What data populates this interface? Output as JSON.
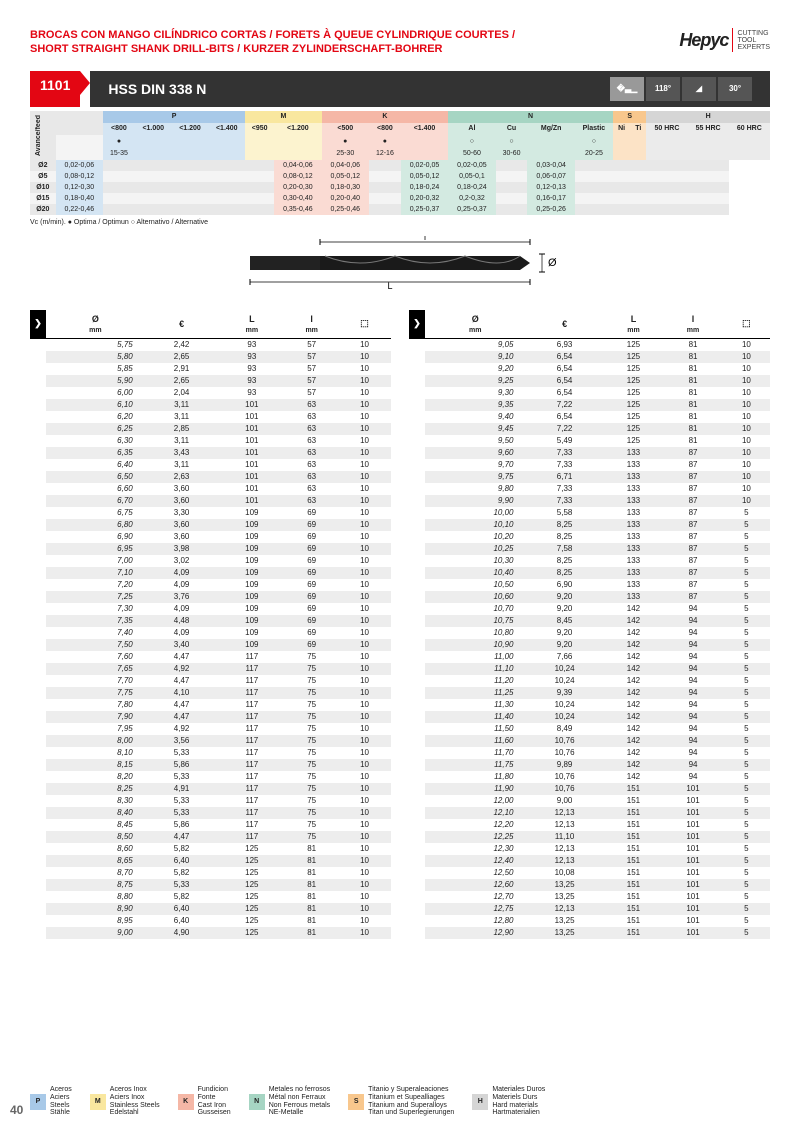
{
  "header": {
    "title_line1": "BROCAS CON MANGO CILÍNDRICO CORTAS / FORETS À QUEUE CYLINDRIQUE COURTES /",
    "title_line2": "SHORT STRAIGHT SHANK DRILL-BITS / KURZER ZYLINDERSCHAFT-BOHRER",
    "logo_name": "Hepyc",
    "logo_sub": "CUTTING\nTOOL\nEXPERTS"
  },
  "product": {
    "code": "1101",
    "name": "HSS DIN 338 N",
    "angle1": "118°",
    "angle2": "30°"
  },
  "materials": {
    "groups": [
      "P",
      "M",
      "K",
      "N",
      "S",
      "H"
    ],
    "P_sub": [
      "<800",
      "<1.000",
      "<1.200",
      "<1.400"
    ],
    "M_sub": [
      "<950",
      "<1.200"
    ],
    "K_sub": [
      "<500",
      "<800",
      "<1.400"
    ],
    "N_sub": [
      "Al",
      "Cu",
      "Mg/Zn",
      "Plastic"
    ],
    "S_sub": [
      "Ni",
      "Ti"
    ],
    "H_sub": [
      "50 HRC",
      "55 HRC",
      "60 HRC"
    ],
    "vc_row": [
      "●",
      "",
      "",
      "",
      "",
      "",
      "●",
      "●",
      "",
      "○",
      "○",
      "",
      "○",
      "",
      "",
      "",
      "",
      ""
    ],
    "vc_vals": [
      "15-35",
      "",
      "",
      "",
      "",
      "",
      "25-30",
      "12-16",
      "",
      "50-60",
      "30-60",
      "",
      "20-25",
      "",
      "",
      "",
      "",
      ""
    ],
    "feed_rows": [
      {
        "d": "Ø2",
        "v": [
          "0,02-0,06",
          "",
          "",
          "",
          "",
          "",
          "0,04-0,06",
          "0,04-0,06",
          "",
          "0,02-0,05",
          "0,02-0,05",
          "",
          "0,03-0,04",
          "",
          "",
          "",
          "",
          ""
        ]
      },
      {
        "d": "Ø5",
        "v": [
          "0,08-0,12",
          "",
          "",
          "",
          "",
          "",
          "0,08-0,12",
          "0,05-0,12",
          "",
          "0,05-0,12",
          "0,05-0,1",
          "",
          "0,06-0,07",
          "",
          "",
          "",
          "",
          ""
        ]
      },
      {
        "d": "Ø10",
        "v": [
          "0,12-0,30",
          "",
          "",
          "",
          "",
          "",
          "0,20-0,30",
          "0,18-0,30",
          "",
          "0,18-0,24",
          "0,18-0,24",
          "",
          "0,12-0,13",
          "",
          "",
          "",
          "",
          ""
        ]
      },
      {
        "d": "Ø15",
        "v": [
          "0,18-0,40",
          "",
          "",
          "",
          "",
          "",
          "0,30-0,40",
          "0,20-0,40",
          "",
          "0,20-0,32",
          "0,2-0,32",
          "",
          "0,16-0,17",
          "",
          "",
          "",
          "",
          ""
        ]
      },
      {
        "d": "Ø20",
        "v": [
          "0,22-0,46",
          "",
          "",
          "",
          "",
          "",
          "0,35-0,46",
          "0,25-0,46",
          "",
          "0,25-0,37",
          "0,25-0,37",
          "",
          "0,25-0,26",
          "",
          "",
          "",
          "",
          ""
        ]
      }
    ],
    "note": "Vc (m/min). ● Optima / Optimun  ○ Alternativo / Alternative",
    "side_label": "Avance/feed"
  },
  "columns": [
    "Ø\nmm",
    "€",
    "L\nmm",
    "l\nmm",
    "📦"
  ],
  "table_left": [
    [
      "5,75",
      "2,42",
      "93",
      "57",
      "10"
    ],
    [
      "5,80",
      "2,65",
      "93",
      "57",
      "10"
    ],
    [
      "5,85",
      "2,91",
      "93",
      "57",
      "10"
    ],
    [
      "5,90",
      "2,65",
      "93",
      "57",
      "10"
    ],
    [
      "6,00",
      "2,04",
      "93",
      "57",
      "10"
    ],
    [
      "6,10",
      "3,11",
      "101",
      "63",
      "10"
    ],
    [
      "6,20",
      "3,11",
      "101",
      "63",
      "10"
    ],
    [
      "6,25",
      "2,85",
      "101",
      "63",
      "10"
    ],
    [
      "6,30",
      "3,11",
      "101",
      "63",
      "10"
    ],
    [
      "6,35",
      "3,43",
      "101",
      "63",
      "10"
    ],
    [
      "6,40",
      "3,11",
      "101",
      "63",
      "10"
    ],
    [
      "6,50",
      "2,63",
      "101",
      "63",
      "10"
    ],
    [
      "6,60",
      "3,60",
      "101",
      "63",
      "10"
    ],
    [
      "6,70",
      "3,60",
      "101",
      "63",
      "10"
    ],
    [
      "6,75",
      "3,30",
      "109",
      "69",
      "10"
    ],
    [
      "6,80",
      "3,60",
      "109",
      "69",
      "10"
    ],
    [
      "6,90",
      "3,60",
      "109",
      "69",
      "10"
    ],
    [
      "6,95",
      "3,98",
      "109",
      "69",
      "10"
    ],
    [
      "7,00",
      "3,02",
      "109",
      "69",
      "10"
    ],
    [
      "7,10",
      "4,09",
      "109",
      "69",
      "10"
    ],
    [
      "7,20",
      "4,09",
      "109",
      "69",
      "10"
    ],
    [
      "7,25",
      "3,76",
      "109",
      "69",
      "10"
    ],
    [
      "7,30",
      "4,09",
      "109",
      "69",
      "10"
    ],
    [
      "7,35",
      "4,48",
      "109",
      "69",
      "10"
    ],
    [
      "7,40",
      "4,09",
      "109",
      "69",
      "10"
    ],
    [
      "7,50",
      "3,40",
      "109",
      "69",
      "10"
    ],
    [
      "7,60",
      "4,47",
      "117",
      "75",
      "10"
    ],
    [
      "7,65",
      "4,92",
      "117",
      "75",
      "10"
    ],
    [
      "7,70",
      "4,47",
      "117",
      "75",
      "10"
    ],
    [
      "7,75",
      "4,10",
      "117",
      "75",
      "10"
    ],
    [
      "7,80",
      "4,47",
      "117",
      "75",
      "10"
    ],
    [
      "7,90",
      "4,47",
      "117",
      "75",
      "10"
    ],
    [
      "7,95",
      "4,92",
      "117",
      "75",
      "10"
    ],
    [
      "8,00",
      "3,56",
      "117",
      "75",
      "10"
    ],
    [
      "8,10",
      "5,33",
      "117",
      "75",
      "10"
    ],
    [
      "8,15",
      "5,86",
      "117",
      "75",
      "10"
    ],
    [
      "8,20",
      "5,33",
      "117",
      "75",
      "10"
    ],
    [
      "8,25",
      "4,91",
      "117",
      "75",
      "10"
    ],
    [
      "8,30",
      "5,33",
      "117",
      "75",
      "10"
    ],
    [
      "8,40",
      "5,33",
      "117",
      "75",
      "10"
    ],
    [
      "8,45",
      "5,86",
      "117",
      "75",
      "10"
    ],
    [
      "8,50",
      "4,47",
      "117",
      "75",
      "10"
    ],
    [
      "8,60",
      "5,82",
      "125",
      "81",
      "10"
    ],
    [
      "8,65",
      "6,40",
      "125",
      "81",
      "10"
    ],
    [
      "8,70",
      "5,82",
      "125",
      "81",
      "10"
    ],
    [
      "8,75",
      "5,33",
      "125",
      "81",
      "10"
    ],
    [
      "8,80",
      "5,82",
      "125",
      "81",
      "10"
    ],
    [
      "8,90",
      "6,40",
      "125",
      "81",
      "10"
    ],
    [
      "8,95",
      "6,40",
      "125",
      "81",
      "10"
    ],
    [
      "9,00",
      "4,90",
      "125",
      "81",
      "10"
    ]
  ],
  "table_right": [
    [
      "9,05",
      "6,93",
      "125",
      "81",
      "10"
    ],
    [
      "9,10",
      "6,54",
      "125",
      "81",
      "10"
    ],
    [
      "9,20",
      "6,54",
      "125",
      "81",
      "10"
    ],
    [
      "9,25",
      "6,54",
      "125",
      "81",
      "10"
    ],
    [
      "9,30",
      "6,54",
      "125",
      "81",
      "10"
    ],
    [
      "9,35",
      "7,22",
      "125",
      "81",
      "10"
    ],
    [
      "9,40",
      "6,54",
      "125",
      "81",
      "10"
    ],
    [
      "9,45",
      "7,22",
      "125",
      "81",
      "10"
    ],
    [
      "9,50",
      "5,49",
      "125",
      "81",
      "10"
    ],
    [
      "9,60",
      "7,33",
      "133",
      "87",
      "10"
    ],
    [
      "9,70",
      "7,33",
      "133",
      "87",
      "10"
    ],
    [
      "9,75",
      "6,71",
      "133",
      "87",
      "10"
    ],
    [
      "9,80",
      "7,33",
      "133",
      "87",
      "10"
    ],
    [
      "9,90",
      "7,33",
      "133",
      "87",
      "10"
    ],
    [
      "10,00",
      "5,58",
      "133",
      "87",
      "5"
    ],
    [
      "10,10",
      "8,25",
      "133",
      "87",
      "5"
    ],
    [
      "10,20",
      "8,25",
      "133",
      "87",
      "5"
    ],
    [
      "10,25",
      "7,58",
      "133",
      "87",
      "5"
    ],
    [
      "10,30",
      "8,25",
      "133",
      "87",
      "5"
    ],
    [
      "10,40",
      "8,25",
      "133",
      "87",
      "5"
    ],
    [
      "10,50",
      "6,90",
      "133",
      "87",
      "5"
    ],
    [
      "10,60",
      "9,20",
      "133",
      "87",
      "5"
    ],
    [
      "10,70",
      "9,20",
      "142",
      "94",
      "5"
    ],
    [
      "10,75",
      "8,45",
      "142",
      "94",
      "5"
    ],
    [
      "10,80",
      "9,20",
      "142",
      "94",
      "5"
    ],
    [
      "10,90",
      "9,20",
      "142",
      "94",
      "5"
    ],
    [
      "11,00",
      "7,66",
      "142",
      "94",
      "5"
    ],
    [
      "11,10",
      "10,24",
      "142",
      "94",
      "5"
    ],
    [
      "11,20",
      "10,24",
      "142",
      "94",
      "5"
    ],
    [
      "11,25",
      "9,39",
      "142",
      "94",
      "5"
    ],
    [
      "11,30",
      "10,24",
      "142",
      "94",
      "5"
    ],
    [
      "11,40",
      "10,24",
      "142",
      "94",
      "5"
    ],
    [
      "11,50",
      "8,49",
      "142",
      "94",
      "5"
    ],
    [
      "11,60",
      "10,76",
      "142",
      "94",
      "5"
    ],
    [
      "11,70",
      "10,76",
      "142",
      "94",
      "5"
    ],
    [
      "11,75",
      "9,89",
      "142",
      "94",
      "5"
    ],
    [
      "11,80",
      "10,76",
      "142",
      "94",
      "5"
    ],
    [
      "11,90",
      "10,76",
      "151",
      "101",
      "5"
    ],
    [
      "12,00",
      "9,00",
      "151",
      "101",
      "5"
    ],
    [
      "12,10",
      "12,13",
      "151",
      "101",
      "5"
    ],
    [
      "12,20",
      "12,13",
      "151",
      "101",
      "5"
    ],
    [
      "12,25",
      "11,10",
      "151",
      "101",
      "5"
    ],
    [
      "12,30",
      "12,13",
      "151",
      "101",
      "5"
    ],
    [
      "12,40",
      "12,13",
      "151",
      "101",
      "5"
    ],
    [
      "12,50",
      "10,08",
      "151",
      "101",
      "5"
    ],
    [
      "12,60",
      "13,25",
      "151",
      "101",
      "5"
    ],
    [
      "12,70",
      "13,25",
      "151",
      "101",
      "5"
    ],
    [
      "12,75",
      "12,13",
      "151",
      "101",
      "5"
    ],
    [
      "12,80",
      "13,25",
      "151",
      "101",
      "5"
    ],
    [
      "12,90",
      "13,25",
      "151",
      "101",
      "5"
    ]
  ],
  "legend": [
    {
      "code": "P",
      "color": "#a8c9e8",
      "txt": "Aceros\nAciers\nSteels\nStähle"
    },
    {
      "code": "M",
      "color": "#f9e79f",
      "txt": "Aceros Inox\nAciers Inox\nStainless Steels\nEdelstahl"
    },
    {
      "code": "K",
      "color": "#f5b7a6",
      "txt": "Fundicion\nFonte\nCast Iron\nGusseisen"
    },
    {
      "code": "N",
      "color": "#a6d5c3",
      "txt": "Metales no ferrosos\nMétal non Ferraux\nNon Ferrous metals\nNE-Metalle"
    },
    {
      "code": "S",
      "color": "#f8c78d",
      "txt": "Titanio y Superaleaciones\nTitanium et Supealliages\nTitanium and Superalloys\nTitan und Superlegierungen"
    },
    {
      "code": "H",
      "color": "#d5d5d5",
      "txt": "Materiales Duros\nMateriels Durs\nHard materials\nHartmaterialien"
    }
  ],
  "page_number": "40"
}
